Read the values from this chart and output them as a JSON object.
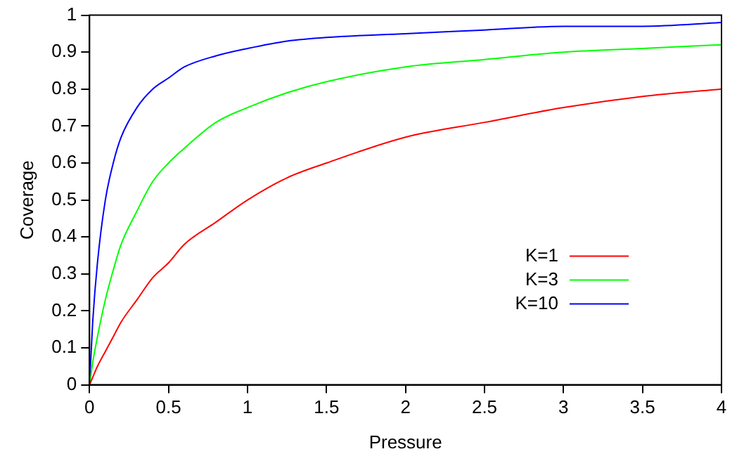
{
  "chart_data": {
    "type": "line",
    "xlabel": "Pressure",
    "ylabel": "Coverage",
    "x": [
      0,
      0.02,
      0.05,
      0.1,
      0.15,
      0.2,
      0.3,
      0.4,
      0.5,
      0.6,
      0.8,
      1,
      1.25,
      1.5,
      2,
      2.5,
      3,
      3.5,
      4
    ],
    "series": [
      {
        "name": "K=1",
        "color": "#ff0000",
        "values": [
          0,
          0.02,
          0.05,
          0.09,
          0.13,
          0.17,
          0.23,
          0.29,
          0.33,
          0.38,
          0.44,
          0.5,
          0.56,
          0.6,
          0.67,
          0.71,
          0.75,
          0.78,
          0.8
        ]
      },
      {
        "name": "K=3",
        "color": "#00ff00",
        "values": [
          0,
          0.06,
          0.13,
          0.23,
          0.31,
          0.38,
          0.47,
          0.55,
          0.6,
          0.64,
          0.71,
          0.75,
          0.79,
          0.82,
          0.86,
          0.88,
          0.9,
          0.91,
          0.92
        ]
      },
      {
        "name": "K=10",
        "color": "#0000ff",
        "values": [
          0,
          0.17,
          0.33,
          0.5,
          0.6,
          0.67,
          0.75,
          0.8,
          0.83,
          0.86,
          0.89,
          0.91,
          0.93,
          0.94,
          0.95,
          0.96,
          0.97,
          0.97,
          0.98
        ]
      }
    ],
    "xlim": [
      0,
      4
    ],
    "xticks": [
      0,
      0.5,
      1,
      1.5,
      2,
      2.5,
      3,
      3.5,
      4
    ],
    "ylim": [
      0,
      1
    ],
    "yticks": [
      0,
      0.1,
      0.2,
      0.3,
      0.4,
      0.5,
      0.6,
      0.7,
      0.8,
      0.9,
      1
    ],
    "grid": false,
    "legend": "right",
    "marker": "none",
    "line_style": "solid"
  }
}
